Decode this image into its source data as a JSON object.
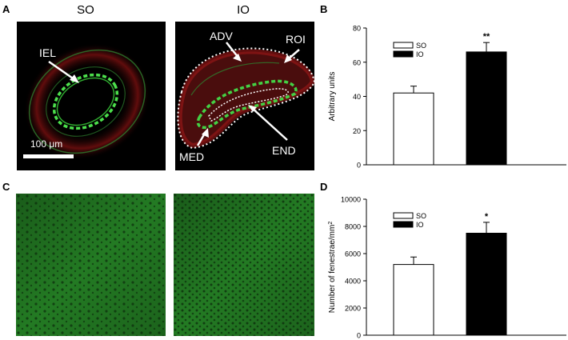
{
  "figure": {
    "panel_letters": [
      "A",
      "B",
      "C",
      "D"
    ],
    "panel_a": {
      "titles": [
        "SO",
        "IO"
      ],
      "labels": {
        "iel": "IEL",
        "adv": "ADV",
        "roi": "ROI",
        "med": "MED",
        "end": "END"
      },
      "scale_bar": "100 μm"
    }
  },
  "colors": {
    "tissue_red": "#c62828",
    "elastin_green": "#33cc33",
    "background": "#000000",
    "fenestrae_green": "#1f7a1f"
  },
  "chart_data": [
    {
      "type": "bar",
      "panel": "B",
      "categories": [
        "SO",
        "IO"
      ],
      "values": [
        42,
        66
      ],
      "errors": [
        4,
        5.5
      ],
      "significance": [
        "",
        "**"
      ],
      "ylabel": "Arbitrary units",
      "ylim": [
        0,
        80
      ],
      "yticks": [
        "0",
        "20",
        "40",
        "60",
        "80"
      ],
      "legend": [
        "SO",
        "IO"
      ],
      "fills": [
        "#ffffff",
        "#000000"
      ]
    },
    {
      "type": "bar",
      "panel": "D",
      "categories": [
        "SO",
        "IO"
      ],
      "values": [
        5200,
        7500
      ],
      "errors": [
        550,
        800
      ],
      "significance": [
        "",
        "*"
      ],
      "ylabel": "Number of fenestrae/mm",
      "ylabel_superscript": "2",
      "ylim": [
        0,
        10000
      ],
      "yticks": [
        "0",
        "2000",
        "4000",
        "6000",
        "8000",
        "10000"
      ],
      "legend": [
        "SO",
        "IO"
      ],
      "fills": [
        "#ffffff",
        "#000000"
      ]
    }
  ]
}
